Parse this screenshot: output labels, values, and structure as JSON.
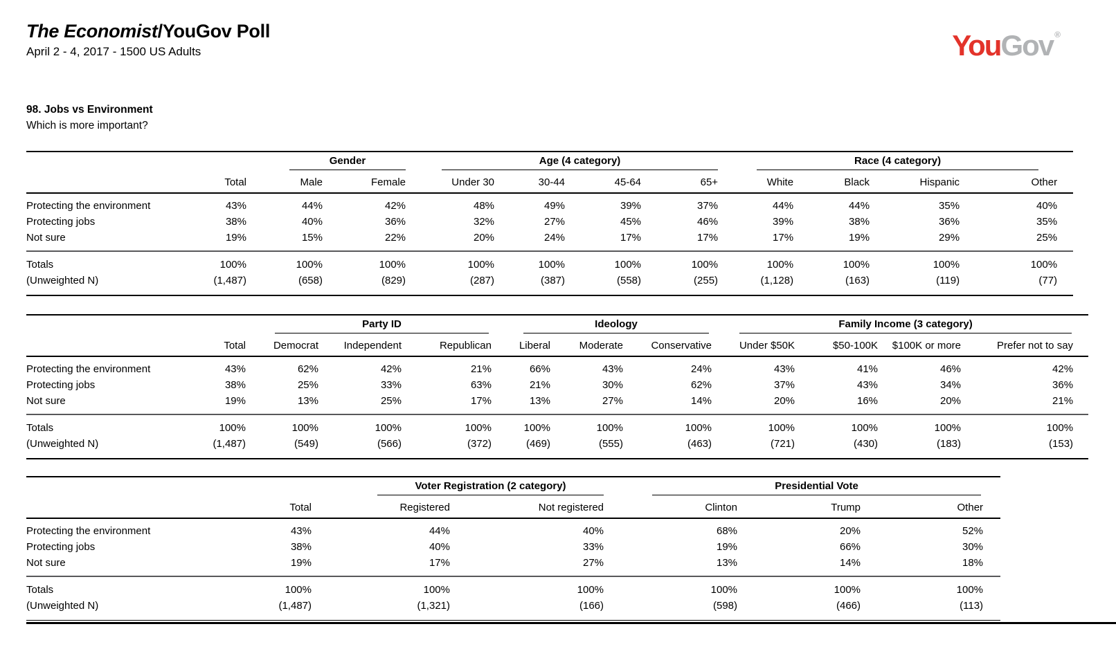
{
  "header": {
    "title_em": "The Economist",
    "title_rest": "/YouGov Poll",
    "subtitle": "April 2 - 4, 2017 - 1500 US Adults",
    "logo": {
      "you": "You",
      "gov": "Gov",
      "reg": "®"
    }
  },
  "brand_colors": {
    "logo_red": "#e3332a",
    "logo_gray": "#b1b3b5"
  },
  "question": {
    "title": "98. Jobs vs Environment",
    "prompt": "Which is more important?"
  },
  "totals_labels": {
    "totals": "Totals",
    "unweighted": "(Unweighted N)"
  },
  "tables": [
    {
      "name": "gender-age-race",
      "groups": [
        {
          "label": "",
          "span": 1
        },
        {
          "label": "",
          "span": 1
        },
        {
          "label": "Gender",
          "span": 2
        },
        {
          "label": "Age (4 category)",
          "span": 4
        },
        {
          "label": "Race (4 category)",
          "span": 4
        }
      ],
      "columns": [
        "Total",
        "Male",
        "Female",
        "Under 30",
        "30-44",
        "45-64",
        "65+",
        "White",
        "Black",
        "Hispanic",
        "Other"
      ],
      "rows": [
        {
          "label": "Protecting the environment",
          "values": [
            "43%",
            "44%",
            "42%",
            "48%",
            "49%",
            "39%",
            "37%",
            "44%",
            "44%",
            "35%",
            "40%"
          ]
        },
        {
          "label": "Protecting jobs",
          "values": [
            "38%",
            "40%",
            "36%",
            "32%",
            "27%",
            "45%",
            "46%",
            "39%",
            "38%",
            "36%",
            "35%"
          ]
        },
        {
          "label": "Not sure",
          "values": [
            "19%",
            "15%",
            "22%",
            "20%",
            "24%",
            "17%",
            "17%",
            "17%",
            "19%",
            "29%",
            "25%"
          ]
        }
      ],
      "totals": [
        "100%",
        "100%",
        "100%",
        "100%",
        "100%",
        "100%",
        "100%",
        "100%",
        "100%",
        "100%",
        "100%"
      ],
      "unweighted": [
        "(1,487)",
        "(658)",
        "(829)",
        "(287)",
        "(387)",
        "(558)",
        "(255)",
        "(1,128)",
        "(163)",
        "(119)",
        "(77)"
      ]
    },
    {
      "name": "party-ideology-income",
      "groups": [
        {
          "label": "",
          "span": 1
        },
        {
          "label": "",
          "span": 1
        },
        {
          "label": "Party ID",
          "span": 3
        },
        {
          "label": "Ideology",
          "span": 3
        },
        {
          "label": "Family Income (3 category)",
          "span": 4
        }
      ],
      "columns": [
        "Total",
        "Democrat",
        "Independent",
        "Republican",
        "Liberal",
        "Moderate",
        "Conservative",
        "Under $50K",
        "$50-100K",
        "$100K or more",
        "Prefer not to say"
      ],
      "rows": [
        {
          "label": "Protecting the environment",
          "values": [
            "43%",
            "62%",
            "42%",
            "21%",
            "66%",
            "43%",
            "24%",
            "43%",
            "41%",
            "46%",
            "42%"
          ]
        },
        {
          "label": "Protecting jobs",
          "values": [
            "38%",
            "25%",
            "33%",
            "63%",
            "21%",
            "30%",
            "62%",
            "37%",
            "43%",
            "34%",
            "36%"
          ]
        },
        {
          "label": "Not sure",
          "values": [
            "19%",
            "13%",
            "25%",
            "17%",
            "13%",
            "27%",
            "14%",
            "20%",
            "16%",
            "20%",
            "21%"
          ]
        }
      ],
      "totals": [
        "100%",
        "100%",
        "100%",
        "100%",
        "100%",
        "100%",
        "100%",
        "100%",
        "100%",
        "100%",
        "100%"
      ],
      "unweighted": [
        "(1,487)",
        "(549)",
        "(566)",
        "(372)",
        "(469)",
        "(555)",
        "(463)",
        "(721)",
        "(430)",
        "(183)",
        "(153)"
      ]
    },
    {
      "name": "registration-presvote",
      "groups": [
        {
          "label": "",
          "span": 1
        },
        {
          "label": "",
          "span": 1
        },
        {
          "label": "Voter Registration (2 category)",
          "span": 2
        },
        {
          "label": "Presidential Vote",
          "span": 3
        }
      ],
      "columns": [
        "Total",
        "Registered",
        "Not registered",
        "Clinton",
        "Trump",
        "Other"
      ],
      "rows": [
        {
          "label": "Protecting the environment",
          "values": [
            "43%",
            "44%",
            "40%",
            "68%",
            "20%",
            "52%"
          ]
        },
        {
          "label": "Protecting jobs",
          "values": [
            "38%",
            "40%",
            "33%",
            "19%",
            "66%",
            "30%"
          ]
        },
        {
          "label": "Not sure",
          "values": [
            "19%",
            "17%",
            "27%",
            "13%",
            "14%",
            "18%"
          ]
        }
      ],
      "totals": [
        "100%",
        "100%",
        "100%",
        "100%",
        "100%",
        "100%"
      ],
      "unweighted": [
        "(1,487)",
        "(1,321)",
        "(166)",
        "(598)",
        "(466)",
        "(113)"
      ]
    }
  ]
}
